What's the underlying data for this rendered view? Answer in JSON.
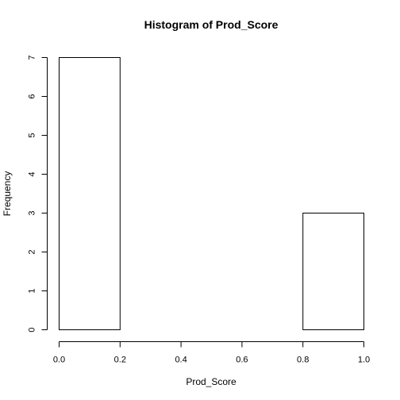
{
  "chart_data": {
    "type": "bar",
    "title": "Histogram of Prod_Score",
    "xlabel": "Prod_Score",
    "ylabel": "Frequency",
    "bins": [
      {
        "start": 0.0,
        "end": 0.2,
        "count": 7
      },
      {
        "start": 0.2,
        "end": 0.4,
        "count": 0
      },
      {
        "start": 0.4,
        "end": 0.6,
        "count": 0
      },
      {
        "start": 0.6,
        "end": 0.8,
        "count": 0
      },
      {
        "start": 0.8,
        "end": 1.0,
        "count": 3
      }
    ],
    "xlim": [
      0,
      1
    ],
    "ylim": [
      0,
      7
    ],
    "xticks": [
      "0.0",
      "0.2",
      "0.4",
      "0.6",
      "0.8",
      "1.0"
    ],
    "yticks": [
      "0",
      "1",
      "2",
      "3",
      "4",
      "5",
      "6",
      "7"
    ],
    "grid": false,
    "legend": "none"
  }
}
